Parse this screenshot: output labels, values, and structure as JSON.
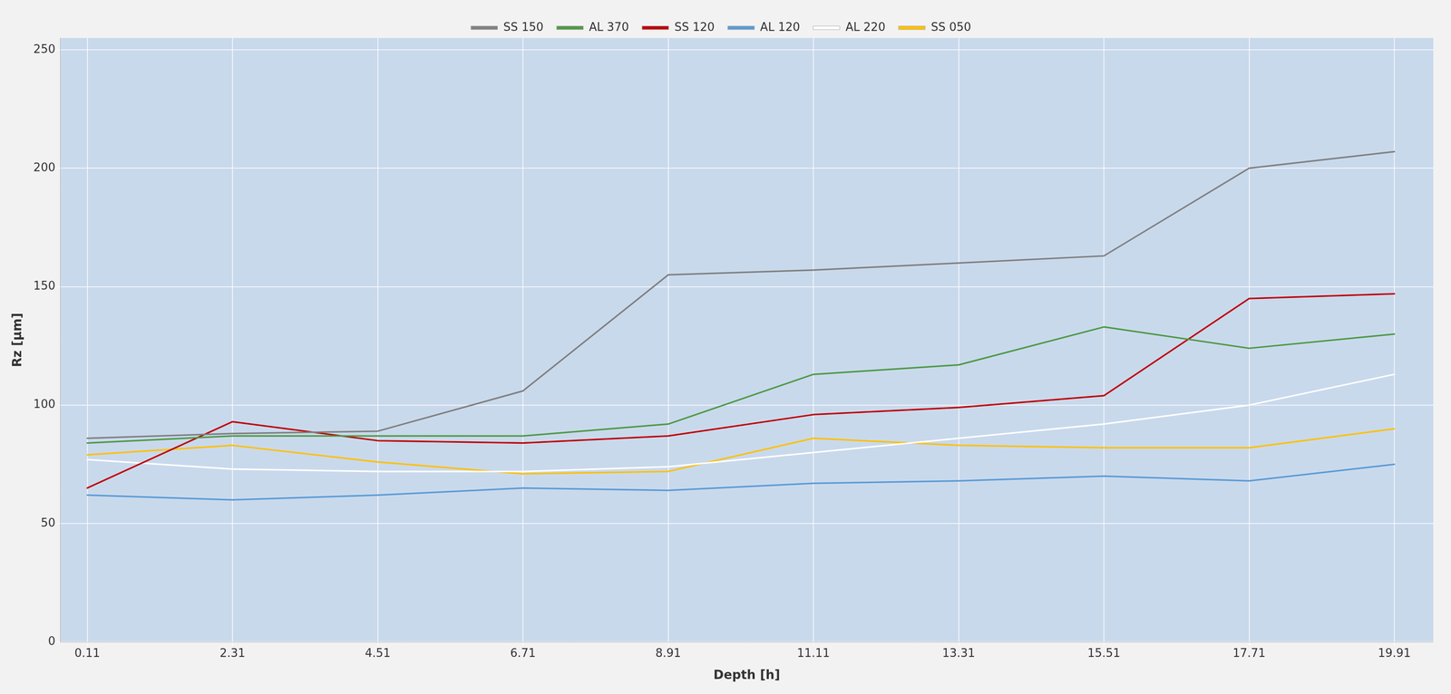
{
  "chart_data": {
    "type": "line",
    "x": [
      0.11,
      2.31,
      4.51,
      6.71,
      8.91,
      11.11,
      13.31,
      15.51,
      17.71,
      19.91
    ],
    "series": [
      {
        "name": "AL 120",
        "color": "#5B9BD5",
        "values": [
          62,
          60,
          62,
          65,
          64,
          67,
          68,
          70,
          68,
          75
        ]
      },
      {
        "name": "AL 220",
        "color": "#FFFFFF",
        "values": [
          77,
          73,
          72,
          72,
          74,
          80,
          86,
          92,
          100,
          113
        ]
      },
      {
        "name": "AL 370",
        "color": "#4E9A44",
        "values": [
          84,
          87,
          87,
          87,
          92,
          113,
          117,
          133,
          124,
          130
        ]
      },
      {
        "name": "SS 050",
        "color": "#FFC000",
        "values": [
          79,
          83,
          76,
          71,
          72,
          86,
          83,
          82,
          82,
          90
        ]
      },
      {
        "name": "SS 120",
        "color": "#C00000",
        "values": [
          65,
          93,
          85,
          84,
          87,
          96,
          99,
          104,
          145,
          147
        ]
      },
      {
        "name": "SS 150",
        "color": "#808080",
        "values": [
          86,
          88,
          89,
          106,
          155,
          157,
          160,
          163,
          200,
          207
        ]
      }
    ],
    "xlabel": "Depth [h]",
    "ylabel": "Rz [μm]",
    "xlim": [
      -0.3,
      20.5
    ],
    "xticks": [
      0.11,
      2.31,
      4.51,
      6.71,
      8.91,
      11.11,
      13.31,
      15.51,
      17.71,
      19.91
    ],
    "ylim": [
      0,
      255
    ],
    "yticks": [
      0,
      50,
      100,
      150,
      200,
      250
    ],
    "grid": true,
    "legend": "top"
  }
}
